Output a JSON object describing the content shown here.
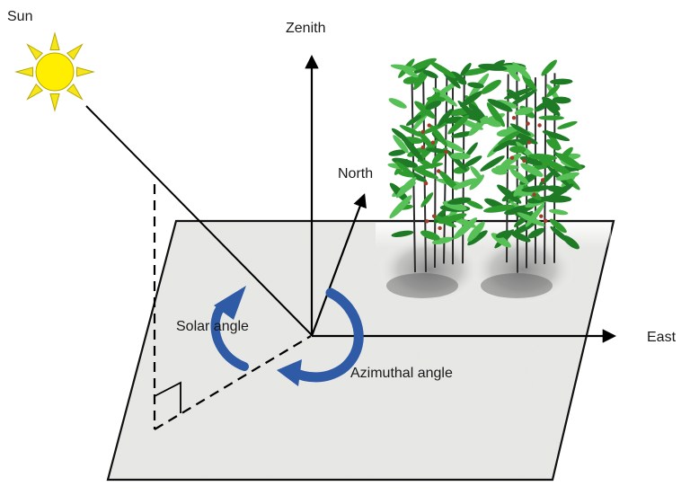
{
  "labels": {
    "sun": "Sun",
    "zenith": "Zenith",
    "north": "North",
    "east": "East",
    "solar_angle": "Solar angle",
    "azimuthal_angle": "Azimuthal angle"
  },
  "colors": {
    "sun_fill": "#ffee00",
    "sun_ray": "#f5e61a",
    "sun_outline": "#b8a800",
    "ground": "#e7e7e5",
    "ground_edge": "#111111",
    "angle_arrow": "#2e5aa6",
    "plant_leaf": "#2f9b2f",
    "plant_stem": "#2b2b2b",
    "line": "#000000"
  },
  "icons": {
    "sun": "sun-icon",
    "plants": "plant-icon"
  }
}
